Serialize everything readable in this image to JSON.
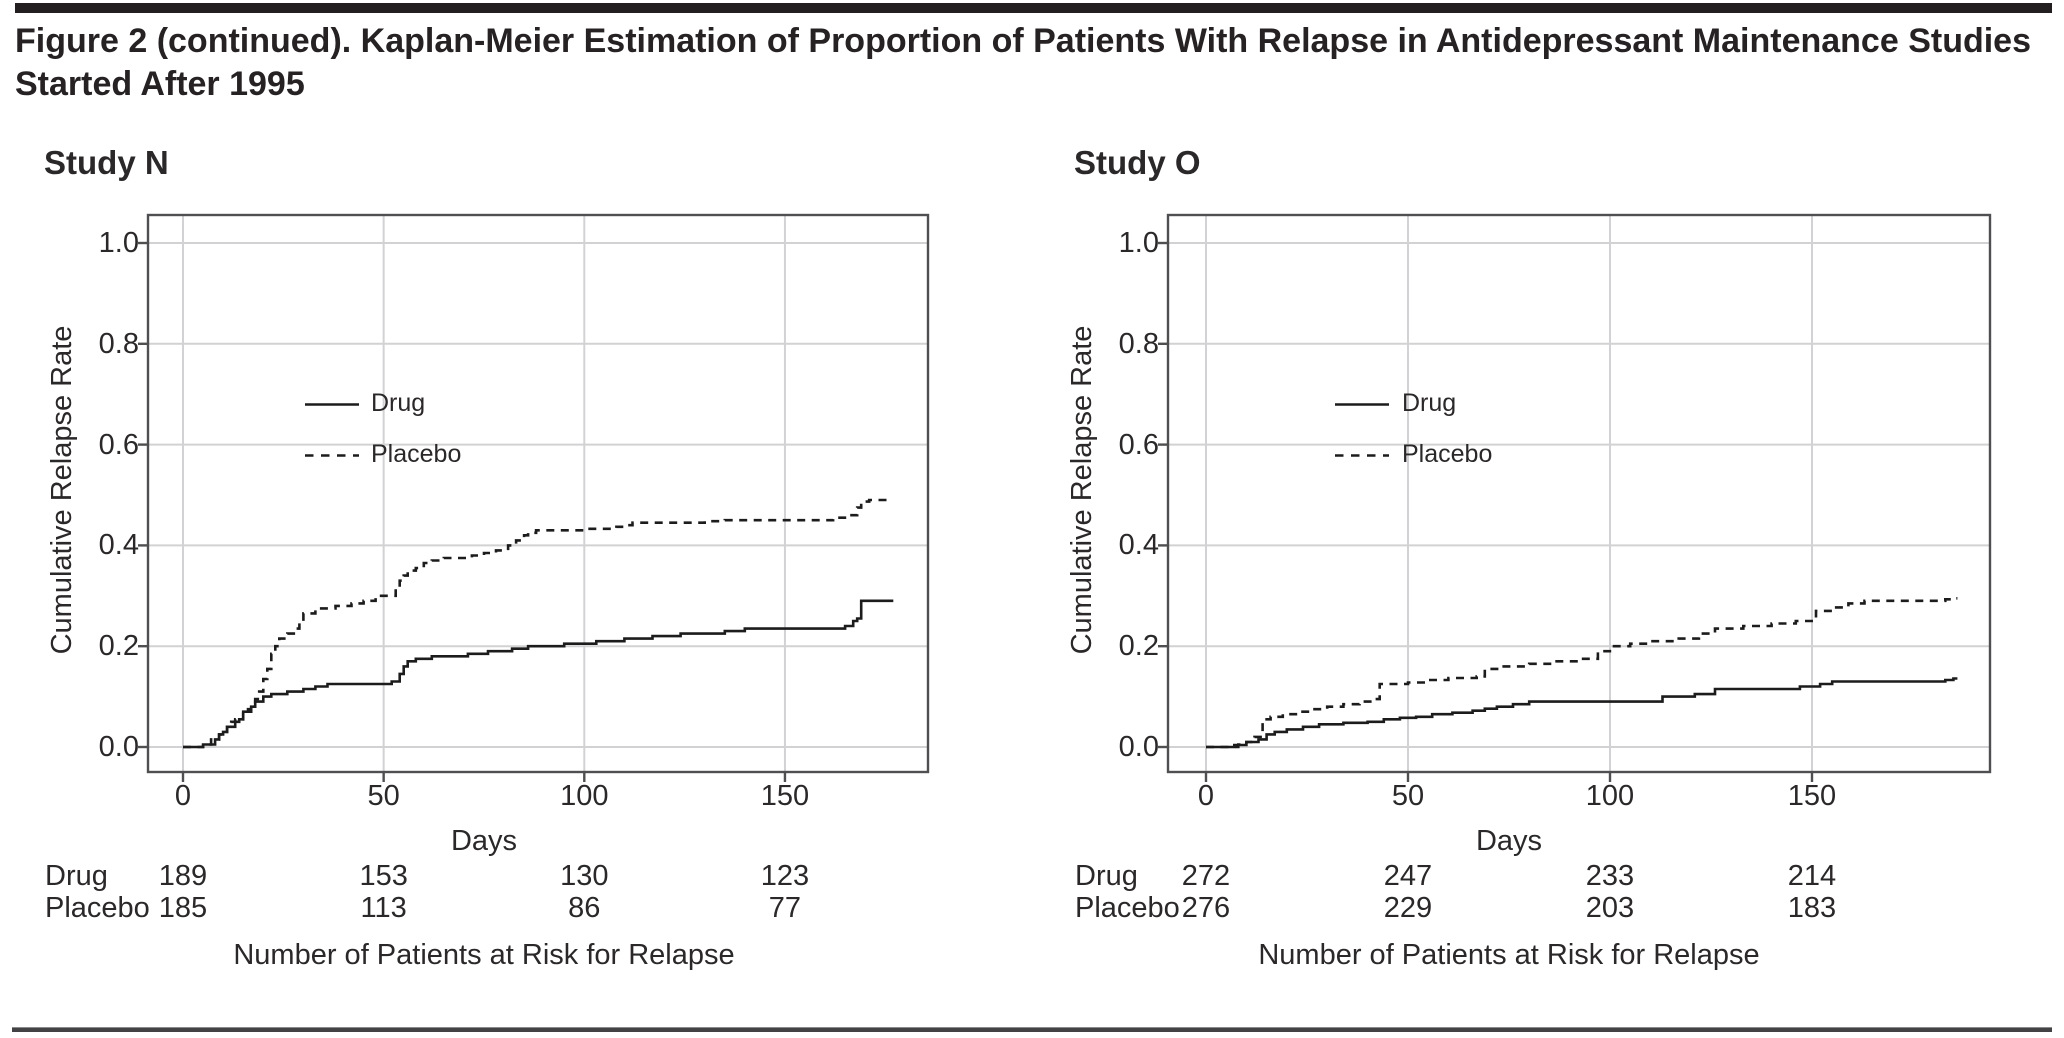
{
  "figure": {
    "title_line1": "Figure 2 (continued). Kaplan-Meier Estimation of Proportion of Patients With Relapse in Antidepressant Maintenance Studies",
    "title_line2": "Started After 1995"
  },
  "colors": {
    "ink": "#231f20",
    "curve": "#1c1c1c",
    "grid": "#d2d2d4",
    "frame": "#4f4f51"
  },
  "chart_data": [
    {
      "type": "line",
      "title": "Study N",
      "xlabel": "Days",
      "ylabel": "Cumulative Relapse Rate",
      "xlim": [
        -9,
        186
      ],
      "ylim": [
        -0.05,
        1.06
      ],
      "xticks": [
        0,
        50,
        100,
        150
      ],
      "yticks": [
        "0.0",
        "0.2",
        "0.4",
        "0.6",
        "0.8",
        "1.0"
      ],
      "grid": true,
      "legend_position": "upper-left-inside",
      "series": [
        {
          "name": "Drug",
          "style": "solid",
          "steps": [
            [
              0,
              0
            ],
            [
              5,
              0.005
            ],
            [
              8,
              0.015
            ],
            [
              9,
              0.025
            ],
            [
              10,
              0.03
            ],
            [
              11,
              0.04
            ],
            [
              13,
              0.05
            ],
            [
              14,
              0.055
            ],
            [
              15,
              0.07
            ],
            [
              17,
              0.08
            ],
            [
              18,
              0.09
            ],
            [
              20,
              0.1
            ],
            [
              22,
              0.105
            ],
            [
              26,
              0.11
            ],
            [
              30,
              0.115
            ],
            [
              33,
              0.12
            ],
            [
              36,
              0.125
            ],
            [
              52,
              0.13
            ],
            [
              54,
              0.145
            ],
            [
              55,
              0.16
            ],
            [
              56,
              0.17
            ],
            [
              58,
              0.175
            ],
            [
              62,
              0.18
            ],
            [
              71,
              0.185
            ],
            [
              76,
              0.19
            ],
            [
              82,
              0.195
            ],
            [
              86,
              0.2
            ],
            [
              95,
              0.205
            ],
            [
              103,
              0.21
            ],
            [
              110,
              0.215
            ],
            [
              117,
              0.22
            ],
            [
              124,
              0.225
            ],
            [
              135,
              0.23
            ],
            [
              140,
              0.235
            ],
            [
              165,
              0.24
            ],
            [
              167,
              0.25
            ],
            [
              168,
              0.255
            ],
            [
              169,
              0.29
            ],
            [
              177,
              0.29
            ]
          ]
        },
        {
          "name": "Placebo",
          "style": "dashed",
          "steps": [
            [
              0,
              0
            ],
            [
              5,
              0.005
            ],
            [
              7,
              0.015
            ],
            [
              9,
              0.025
            ],
            [
              11,
              0.04
            ],
            [
              12,
              0.05
            ],
            [
              13,
              0.055
            ],
            [
              15,
              0.075
            ],
            [
              17,
              0.085
            ],
            [
              18,
              0.095
            ],
            [
              19,
              0.11
            ],
            [
              20,
              0.135
            ],
            [
              21,
              0.155
            ],
            [
              22,
              0.185
            ],
            [
              23,
              0.2
            ],
            [
              24,
              0.215
            ],
            [
              26,
              0.225
            ],
            [
              28,
              0.235
            ],
            [
              29,
              0.25
            ],
            [
              30,
              0.265
            ],
            [
              33,
              0.275
            ],
            [
              38,
              0.28
            ],
            [
              42,
              0.285
            ],
            [
              45,
              0.29
            ],
            [
              48,
              0.3
            ],
            [
              53,
              0.315
            ],
            [
              54,
              0.33
            ],
            [
              55,
              0.34
            ],
            [
              56,
              0.35
            ],
            [
              58,
              0.355
            ],
            [
              60,
              0.365
            ],
            [
              62,
              0.37
            ],
            [
              65,
              0.375
            ],
            [
              72,
              0.38
            ],
            [
              75,
              0.385
            ],
            [
              78,
              0.39
            ],
            [
              81,
              0.4
            ],
            [
              83,
              0.41
            ],
            [
              85,
              0.42
            ],
            [
              86,
              0.425
            ],
            [
              88,
              0.43
            ],
            [
              100,
              0.433
            ],
            [
              108,
              0.437
            ],
            [
              110,
              0.44
            ],
            [
              112,
              0.445
            ],
            [
              130,
              0.448
            ],
            [
              135,
              0.45
            ],
            [
              162,
              0.455
            ],
            [
              166,
              0.46
            ],
            [
              168,
              0.475
            ],
            [
              169,
              0.487
            ],
            [
              171,
              0.49
            ],
            [
              176,
              0.49
            ]
          ]
        }
      ],
      "at_risk": {
        "caption": "Number of Patients at Risk for Relapse",
        "days": [
          0,
          50,
          100,
          150
        ],
        "rows": [
          {
            "label": "Drug",
            "values": [
              189,
              153,
              130,
              123
            ]
          },
          {
            "label": "Placebo",
            "values": [
              185,
              113,
              86,
              77
            ]
          }
        ]
      }
    },
    {
      "type": "line",
      "title": "Study O",
      "xlabel": "Days",
      "ylabel": "Cumulative Relapse Rate",
      "xlim": [
        -9,
        194
      ],
      "ylim": [
        -0.05,
        1.06
      ],
      "xticks": [
        0,
        50,
        100,
        150
      ],
      "yticks": [
        "0.0",
        "0.2",
        "0.4",
        "0.6",
        "0.8",
        "1.0"
      ],
      "grid": true,
      "legend_position": "upper-left-inside",
      "series": [
        {
          "name": "Drug",
          "style": "solid",
          "steps": [
            [
              0,
              0
            ],
            [
              7,
              0.004
            ],
            [
              10,
              0.01
            ],
            [
              13,
              0.015
            ],
            [
              15,
              0.025
            ],
            [
              17,
              0.03
            ],
            [
              20,
              0.035
            ],
            [
              24,
              0.04
            ],
            [
              28,
              0.045
            ],
            [
              34,
              0.048
            ],
            [
              40,
              0.05
            ],
            [
              44,
              0.055
            ],
            [
              48,
              0.058
            ],
            [
              52,
              0.06
            ],
            [
              56,
              0.065
            ],
            [
              61,
              0.068
            ],
            [
              66,
              0.072
            ],
            [
              69,
              0.076
            ],
            [
              72,
              0.08
            ],
            [
              76,
              0.085
            ],
            [
              80,
              0.09
            ],
            [
              113,
              0.1
            ],
            [
              121,
              0.105
            ],
            [
              126,
              0.115
            ],
            [
              147,
              0.12
            ],
            [
              152,
              0.125
            ],
            [
              155,
              0.13
            ],
            [
              183,
              0.133
            ],
            [
              185,
              0.136
            ],
            [
              186,
              0.136
            ]
          ]
        },
        {
          "name": "Placebo",
          "style": "dashed",
          "steps": [
            [
              0,
              0
            ],
            [
              8,
              0.005
            ],
            [
              10,
              0.01
            ],
            [
              12,
              0.02
            ],
            [
              14,
              0.055
            ],
            [
              16,
              0.06
            ],
            [
              19,
              0.065
            ],
            [
              23,
              0.07
            ],
            [
              26,
              0.075
            ],
            [
              30,
              0.08
            ],
            [
              34,
              0.085
            ],
            [
              38,
              0.09
            ],
            [
              41,
              0.095
            ],
            [
              43,
              0.125
            ],
            [
              50,
              0.128
            ],
            [
              55,
              0.133
            ],
            [
              60,
              0.137
            ],
            [
              67,
              0.14
            ],
            [
              69,
              0.155
            ],
            [
              73,
              0.16
            ],
            [
              80,
              0.165
            ],
            [
              86,
              0.17
            ],
            [
              93,
              0.175
            ],
            [
              97,
              0.19
            ],
            [
              101,
              0.2
            ],
            [
              105,
              0.205
            ],
            [
              110,
              0.21
            ],
            [
              117,
              0.215
            ],
            [
              122,
              0.225
            ],
            [
              126,
              0.235
            ],
            [
              133,
              0.24
            ],
            [
              140,
              0.245
            ],
            [
              146,
              0.25
            ],
            [
              151,
              0.27
            ],
            [
              156,
              0.277
            ],
            [
              159,
              0.285
            ],
            [
              163,
              0.29
            ],
            [
              183,
              0.293
            ],
            [
              185,
              0.295
            ],
            [
              186,
              0.295
            ]
          ]
        }
      ],
      "at_risk": {
        "caption": "Number of Patients at Risk for Relapse",
        "days": [
          0,
          50,
          100,
          150
        ],
        "rows": [
          {
            "label": "Drug",
            "values": [
              272,
              247,
              233,
              214
            ]
          },
          {
            "label": "Placebo",
            "values": [
              276,
              229,
              203,
              183
            ]
          }
        ]
      }
    }
  ]
}
